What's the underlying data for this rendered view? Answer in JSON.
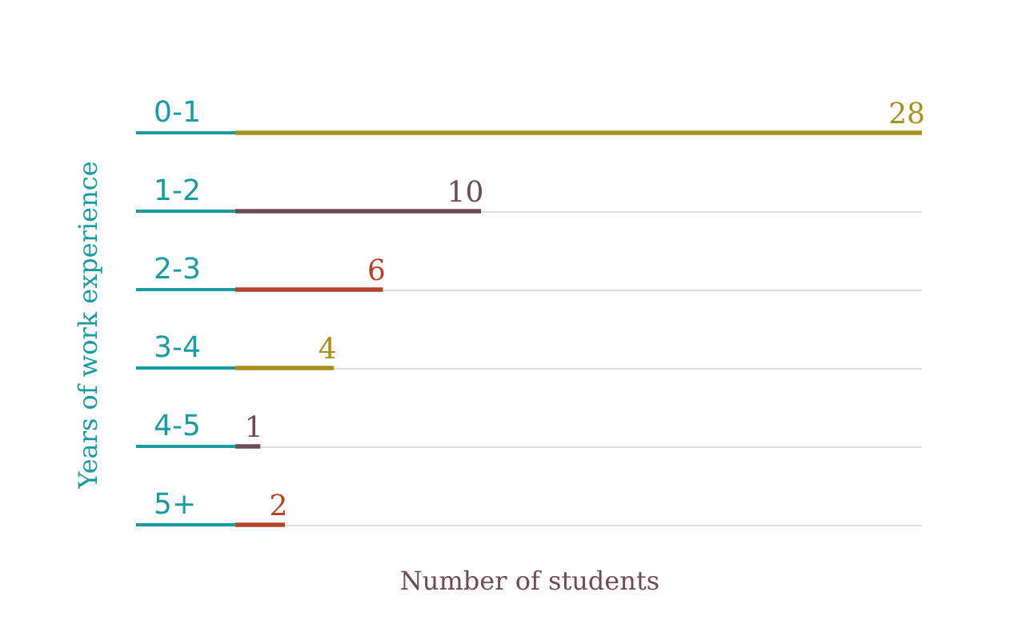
{
  "chart_data": {
    "type": "bar",
    "orientation": "horizontal",
    "xlabel": "Number of students",
    "ylabel": "Years of work experience",
    "categories": [
      "0-1",
      "1-2",
      "2-3",
      "3-4",
      "4-5",
      "5+"
    ],
    "values": [
      28,
      10,
      6,
      4,
      1,
      2
    ],
    "colors": [
      "#a8901f",
      "#6e4b55",
      "#b2452a",
      "#a8901f",
      "#6e4b55",
      "#b2452a"
    ],
    "xlim": [
      0,
      28
    ],
    "data_labels": true,
    "grid": "y",
    "tick_labels": "y"
  }
}
